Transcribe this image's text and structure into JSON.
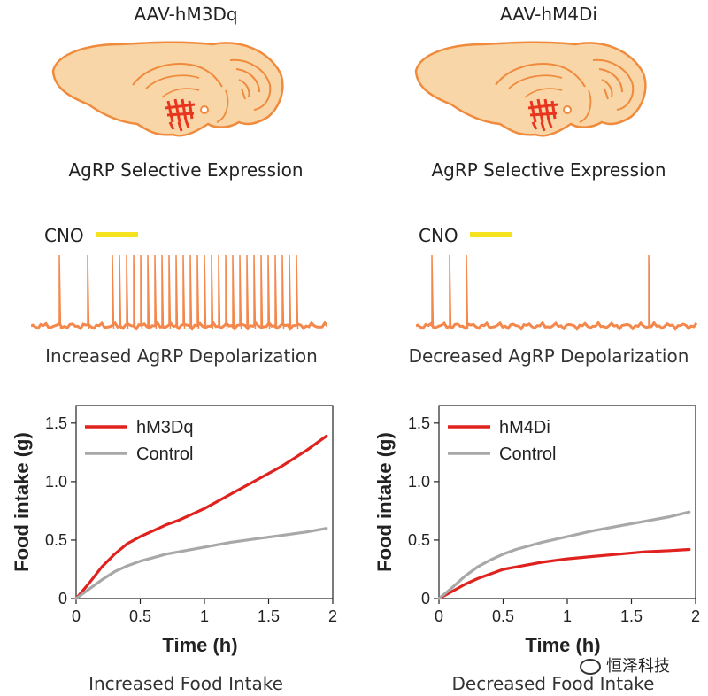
{
  "panels": [
    {
      "virus": "AAV-hM3Dq",
      "expression": "AgRP Selective Expression",
      "cno_label": "CNO",
      "trace_caption": "Increased AgRP Depolarization",
      "effect_caption": "Increased Food Intake"
    },
    {
      "virus": "AAV-hM4Di",
      "expression": "AgRP Selective Expression",
      "cno_label": "CNO",
      "trace_caption": "Decreased AgRP Depolarization",
      "effect_caption": "Decreased Food Intake"
    }
  ],
  "colors": {
    "brain_fill": "#f9d6a8",
    "brain_outline": "#f08a3c",
    "neuron_red": "#e8351e",
    "trace_orange": "#f4874b",
    "cno_bar": "#f5e320",
    "experimental_line": "#e0221f",
    "control_line": "#a8a8a8"
  },
  "watermark": "恒泽科技",
  "chart_data": [
    {
      "type": "line",
      "title": "",
      "xlabel": "Time (h)",
      "ylabel": "Food intake (g)",
      "xlim": [
        0,
        2
      ],
      "ylim": [
        0,
        1.65
      ],
      "xticks": [
        0,
        0.5,
        1,
        1.5,
        2
      ],
      "xtick_labels": [
        "0",
        "0.5",
        "1",
        "1.5",
        "2"
      ],
      "yticks": [
        0,
        0.5,
        1.0,
        1.5
      ],
      "ytick_labels": [
        "0",
        "0.5",
        "1.0",
        "1.5"
      ],
      "legend": "top-left",
      "series": [
        {
          "name": "hM3Dq",
          "color": "#e0221f",
          "x": [
            0,
            0.1,
            0.2,
            0.3,
            0.4,
            0.5,
            0.6,
            0.7,
            0.8,
            0.9,
            1.0,
            1.2,
            1.4,
            1.6,
            1.8,
            1.95
          ],
          "y": [
            0,
            0.13,
            0.27,
            0.38,
            0.47,
            0.53,
            0.58,
            0.63,
            0.67,
            0.72,
            0.77,
            0.89,
            1.01,
            1.13,
            1.27,
            1.39
          ]
        },
        {
          "name": "Control",
          "color": "#a8a8a8",
          "x": [
            0,
            0.1,
            0.2,
            0.3,
            0.4,
            0.5,
            0.6,
            0.7,
            0.8,
            1.0,
            1.2,
            1.4,
            1.6,
            1.8,
            1.95
          ],
          "y": [
            0,
            0.08,
            0.16,
            0.23,
            0.28,
            0.32,
            0.35,
            0.38,
            0.4,
            0.44,
            0.48,
            0.51,
            0.54,
            0.57,
            0.6
          ]
        }
      ]
    },
    {
      "type": "line",
      "title": "",
      "xlabel": "Time (h)",
      "ylabel": "Food intake (g)",
      "xlim": [
        0,
        2
      ],
      "ylim": [
        0,
        1.65
      ],
      "xticks": [
        0,
        0.5,
        1,
        1.5,
        2
      ],
      "xtick_labels": [
        "0",
        "0.5",
        "1",
        "1.5",
        "2"
      ],
      "yticks": [
        0,
        0.5,
        1.0,
        1.5
      ],
      "ytick_labels": [
        "0",
        "0.5",
        "1.0",
        "1.5"
      ],
      "legend": "top-left",
      "series": [
        {
          "name": "hM4Di",
          "color": "#e0221f",
          "x": [
            0,
            0.1,
            0.2,
            0.3,
            0.4,
            0.5,
            0.6,
            0.8,
            1.0,
            1.2,
            1.4,
            1.6,
            1.8,
            1.95
          ],
          "y": [
            0,
            0.06,
            0.12,
            0.17,
            0.21,
            0.25,
            0.27,
            0.31,
            0.34,
            0.36,
            0.38,
            0.4,
            0.41,
            0.42
          ]
        },
        {
          "name": "Control",
          "color": "#a8a8a8",
          "x": [
            0,
            0.1,
            0.2,
            0.3,
            0.4,
            0.5,
            0.6,
            0.8,
            1.0,
            1.2,
            1.4,
            1.6,
            1.8,
            1.95
          ],
          "y": [
            0,
            0.09,
            0.19,
            0.27,
            0.33,
            0.38,
            0.42,
            0.48,
            0.53,
            0.58,
            0.62,
            0.66,
            0.7,
            0.74
          ]
        }
      ]
    }
  ]
}
